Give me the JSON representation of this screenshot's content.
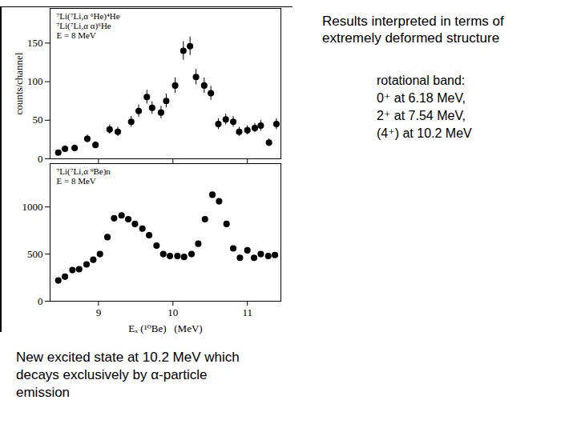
{
  "chart_data": [
    {
      "type": "scatter",
      "annotations": [
        "⁷Li(⁷Li,α ⁶He)⁴He",
        "⁷Li(⁷Li,α α)⁶He",
        "E = 8 MeV"
      ],
      "ylabel": "counts/channel",
      "x": [
        8.46,
        8.55,
        8.68,
        8.85,
        8.96,
        9.15,
        9.26,
        9.44,
        9.54,
        9.65,
        9.72,
        9.84,
        9.91,
        10.03,
        10.14,
        10.23,
        10.31,
        10.42,
        10.51,
        10.61,
        10.71,
        10.81,
        10.89,
        11.0,
        11.1,
        11.18,
        11.29,
        11.39
      ],
      "values": [
        8,
        13,
        14,
        26,
        18,
        38,
        35,
        48,
        62,
        80,
        66,
        60,
        75,
        95,
        140,
        146,
        106,
        95,
        85,
        45,
        51,
        48,
        35,
        37,
        40,
        43,
        21,
        45
      ],
      "errors": [
        3,
        4,
        4,
        5,
        4,
        6,
        6,
        7,
        8,
        9,
        8,
        8,
        9,
        10,
        12,
        12,
        10,
        10,
        9,
        7,
        7,
        7,
        6,
        6,
        6,
        7,
        5,
        7
      ],
      "xlim": [
        8.35,
        11.45
      ],
      "ylim": [
        0,
        195
      ],
      "xticks": [
        9,
        10,
        11
      ],
      "yticks": [
        0,
        50,
        100,
        150
      ],
      "tick_labels": "y",
      "grid": false,
      "marker": "circle",
      "color": "#000000"
    },
    {
      "type": "scatter",
      "annotations": [
        "⁷Li(⁷Li,α ⁹Be)n",
        "E = 8 MeV"
      ],
      "xlabel": "Eₓ (¹⁰Be)   (MeV)",
      "x": [
        8.46,
        8.55,
        8.65,
        8.74,
        8.84,
        8.93,
        9.02,
        9.12,
        9.21,
        9.31,
        9.4,
        9.49,
        9.59,
        9.68,
        9.78,
        9.87,
        9.96,
        10.06,
        10.15,
        10.25,
        10.34,
        10.43,
        10.53,
        10.62,
        10.72,
        10.81,
        10.9,
        11.0,
        11.09,
        11.18,
        11.28,
        11.37
      ],
      "values": [
        220,
        260,
        330,
        340,
        390,
        440,
        500,
        680,
        880,
        910,
        870,
        820,
        770,
        700,
        590,
        500,
        480,
        480,
        470,
        500,
        610,
        870,
        1130,
        1060,
        820,
        560,
        460,
        540,
        460,
        500,
        480,
        490
      ],
      "xlim": [
        8.35,
        11.45
      ],
      "ylim": [
        0,
        1460
      ],
      "xticks": [
        9,
        10,
        11
      ],
      "yticks": [
        0,
        500,
        1000
      ],
      "grid": false,
      "marker": "circle",
      "color": "#000000"
    }
  ],
  "slide_text": {
    "header": [
      "Results interpreted in terms of",
      "extremely deformed structure"
    ],
    "band": [
      "rotational band:",
      "0⁺ at 6.18 MeV,",
      "2⁺ at 7.54 MeV,",
      "(4⁺) at 10.2 MeV"
    ],
    "note": [
      "New excited state at 10.2 MeV which",
      "decays exclusively by α-particle",
      "emission"
    ]
  }
}
